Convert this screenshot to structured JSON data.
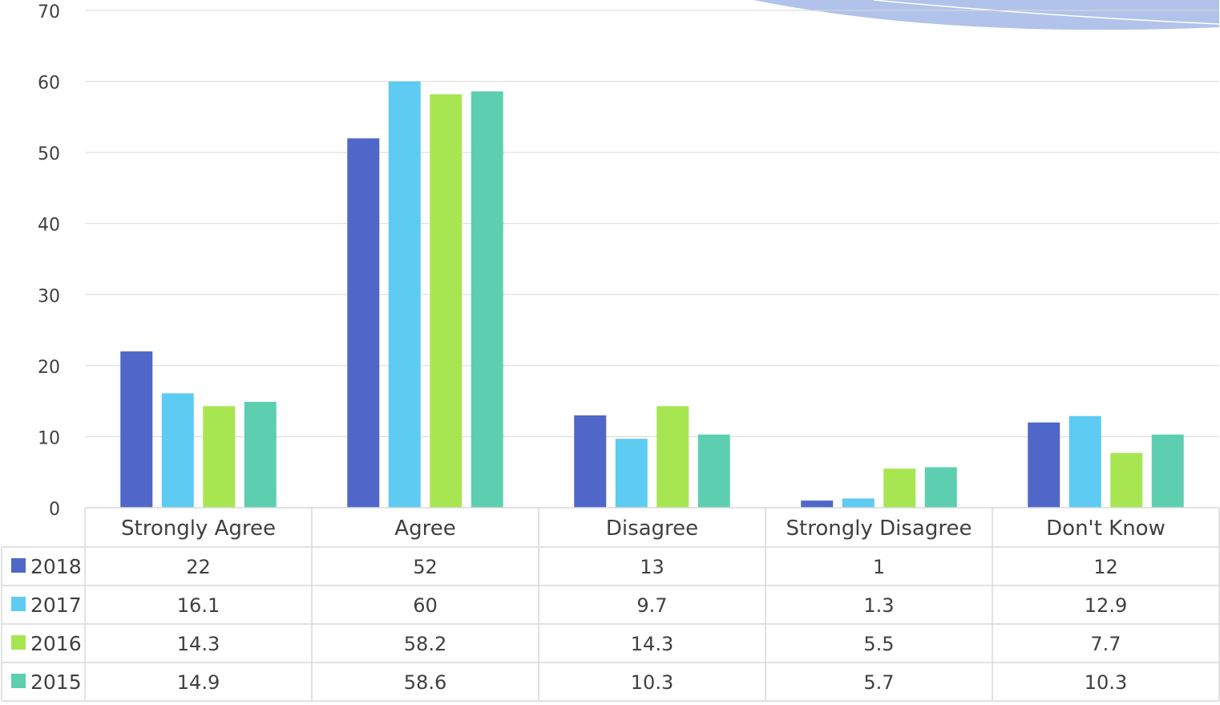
{
  "chart_data": {
    "type": "bar",
    "categories": [
      "Strongly Agree",
      "Agree",
      "Disagree",
      "Strongly Disagree",
      "Don't Know"
    ],
    "series": [
      {
        "name": "2018",
        "values": [
          22,
          52,
          13,
          1,
          12
        ]
      },
      {
        "name": "2017",
        "values": [
          16.1,
          60,
          9.7,
          1.3,
          12.9
        ]
      },
      {
        "name": "2016",
        "values": [
          14.3,
          58.2,
          14.3,
          5.5,
          7.7
        ]
      },
      {
        "name": "2015",
        "values": [
          14.9,
          58.6,
          10.3,
          5.7,
          10.3
        ]
      }
    ],
    "series_labels": [
      [
        "22",
        "52",
        "13",
        "1",
        "12"
      ],
      [
        "16.1",
        "60",
        "9.7",
        "1.3",
        "12.9"
      ],
      [
        "14.3",
        "58.2",
        "14.3",
        "5.5",
        "7.7"
      ],
      [
        "14.9",
        "58.6",
        "10.3",
        "5.7",
        "10.3"
      ]
    ],
    "ylim": [
      0,
      70
    ],
    "yticks": [
      "0",
      "10",
      "20",
      "30",
      "40",
      "50",
      "60",
      "70"
    ],
    "grid": true,
    "legend": "data-table",
    "title": "",
    "xlabel": "",
    "ylabel": ""
  },
  "colors": {
    "series": [
      "#4F67C8",
      "#5ECBF2",
      "#A8E651",
      "#5DCFB0"
    ],
    "grid": "#d9d9d9",
    "text": "#404040",
    "decoration": "#a9bde8"
  }
}
